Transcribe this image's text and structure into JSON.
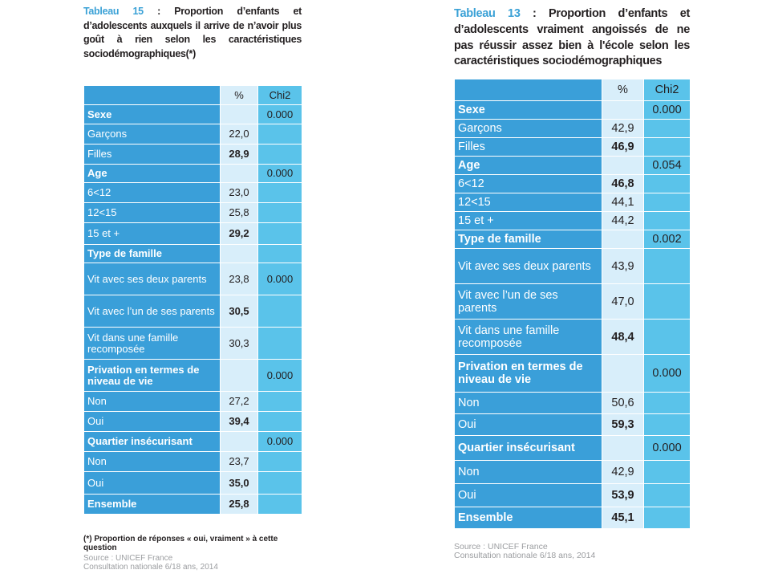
{
  "left": {
    "title_num": "Tableau 15",
    "title_rest": " : Proportion d’enfants et d’adolescents auxquels il arrive de n’avoir plus goût à rien selon les caractéristiques sociodémographiques(*)",
    "col_pct": "%",
    "col_chi": "Chi2",
    "rows": [
      {
        "label": "Sexe",
        "pct": "",
        "chi": "0.000",
        "head": true
      },
      {
        "label": "Garçons",
        "pct": "22,0",
        "chi": ""
      },
      {
        "label": "Filles",
        "pct": "28,9",
        "chi": "",
        "bold": true
      },
      {
        "label": "Age",
        "pct": "",
        "chi": "0.000",
        "head": true
      },
      {
        "label": "6<12",
        "pct": "23,0",
        "chi": ""
      },
      {
        "label": "12<15",
        "pct": "25,8",
        "chi": ""
      },
      {
        "label": "15 et +",
        "pct": "29,2",
        "chi": "",
        "bold": true
      },
      {
        "label": "Type de famille",
        "pct": "",
        "chi": "",
        "head": true
      },
      {
        "label": "Vit avec ses deux parents",
        "pct": "23,8",
        "chi": "0.000"
      },
      {
        "label": "Vit avec l’un de ses parents",
        "pct": "30,5",
        "chi": "",
        "bold": true
      },
      {
        "label": "Vit dans une famille recomposée",
        "pct": "30,3",
        "chi": ""
      },
      {
        "label": "Privation en termes de niveau de vie",
        "pct": "",
        "chi": "0.000",
        "head": true
      },
      {
        "label": "Non",
        "pct": "27,2",
        "chi": ""
      },
      {
        "label": "Oui",
        "pct": "39,4",
        "chi": "",
        "bold": true
      },
      {
        "label": "Quartier insécurisant",
        "pct": "",
        "chi": "0.000",
        "head": true
      },
      {
        "label": "Non",
        "pct": "23,7",
        "chi": ""
      },
      {
        "label": "Oui",
        "pct": "35,0",
        "chi": "",
        "bold": true
      },
      {
        "label": "Ensemble",
        "pct": "25,8",
        "chi": "",
        "head": true,
        "bold": true
      }
    ],
    "footnote": "(*) Proportion de réponses « oui, vraiment » à cette question",
    "source_1": "Source : UNICEF France",
    "source_2": "Consultation nationale 6/18 ans, 2014"
  },
  "right": {
    "title_num": "Tableau 13",
    "title_rest": " : Proportion d’enfants et d’adolescents vraiment angoissés de ne pas réussir assez bien à l'école selon les caractéristiques sociodémographiques",
    "col_pct": "%",
    "col_chi": "Chi2",
    "rows": [
      {
        "label": "Sexe",
        "pct": "",
        "chi": "0.000",
        "head": true
      },
      {
        "label": "Garçons",
        "pct": "42,9",
        "chi": ""
      },
      {
        "label": "Filles",
        "pct": "46,9",
        "chi": "",
        "bold": true
      },
      {
        "label": "Age",
        "pct": "",
        "chi": "0.054",
        "head": true
      },
      {
        "label": "6<12",
        "pct": "46,8",
        "chi": "",
        "bold": true
      },
      {
        "label": "12<15",
        "pct": "44,1",
        "chi": ""
      },
      {
        "label": "15 et +",
        "pct": "44,2",
        "chi": ""
      },
      {
        "label": "Type de famille",
        "pct": "",
        "chi": "0.002",
        "head": true
      },
      {
        "label": "Vit avec ses deux parents",
        "pct": "43,9",
        "chi": ""
      },
      {
        "label": "Vit avec l’un de ses parents",
        "pct": "47,0",
        "chi": ""
      },
      {
        "label": "Vit dans une famille recomposée",
        "pct": "48,4",
        "chi": "",
        "bold": true
      },
      {
        "label": "Privation en termes de niveau de vie",
        "pct": "",
        "chi": "0.000",
        "head": true
      },
      {
        "label": "Non",
        "pct": "50,6",
        "chi": ""
      },
      {
        "label": "Oui",
        "pct": "59,3",
        "chi": "",
        "bold": true
      },
      {
        "label": "Quartier insécurisant",
        "pct": "",
        "chi": "0.000",
        "head": true
      },
      {
        "label": "Non",
        "pct": "42,9",
        "chi": ""
      },
      {
        "label": "Oui",
        "pct": "53,9",
        "chi": "",
        "bold": true
      },
      {
        "label": "Ensemble",
        "pct": "45,1",
        "chi": "",
        "head": true,
        "bold": true
      }
    ],
    "source_1": "Source : UNICEF France",
    "source_2": "Consultation nationale 6/18 ans, 2014"
  }
}
